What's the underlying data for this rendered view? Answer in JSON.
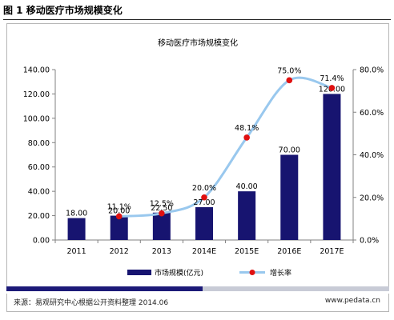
{
  "caption": "图 1 移动医疗市场规模变化",
  "source": "来源：易观研究中心根据公开资料整理  2014.06",
  "site": "www.pedata.cn",
  "colors": {
    "bar": "#171470",
    "line": "#99c8ee",
    "marker": "#e01010"
  },
  "chart_data": {
    "type": "bar",
    "title": "移动医疗市场规模变化",
    "categories": [
      "2011",
      "2012",
      "2013",
      "2014E",
      "2015E",
      "2016E",
      "2017E"
    ],
    "series": [
      {
        "name": "市场规模(亿元)",
        "type": "bar",
        "axis": "left",
        "values": [
          18.0,
          20.0,
          22.5,
          27.0,
          40.0,
          70.0,
          120.0
        ],
        "labels": [
          "18.00",
          "20.00",
          "22.50",
          "27.00",
          "40.00",
          "70.00",
          "120.00"
        ]
      },
      {
        "name": "增长率",
        "type": "line",
        "axis": "right",
        "values": [
          null,
          11.1,
          12.5,
          20.0,
          48.1,
          75.0,
          71.4
        ],
        "labels": [
          "",
          "11.1%",
          "12.5%",
          "20.0%",
          "48.1%",
          "75.0%",
          "71.4%"
        ]
      }
    ],
    "y_left": {
      "min": 0,
      "max": 140,
      "ticks": [
        "0.00",
        "20.00",
        "40.00",
        "60.00",
        "80.00",
        "100.00",
        "120.00",
        "140.00"
      ]
    },
    "y_right": {
      "min": 0,
      "max": 80,
      "ticks": [
        "0.0%",
        "20.0%",
        "40.0%",
        "60.0%",
        "80.0%"
      ]
    },
    "legend_position": "bottom",
    "grid": false
  }
}
